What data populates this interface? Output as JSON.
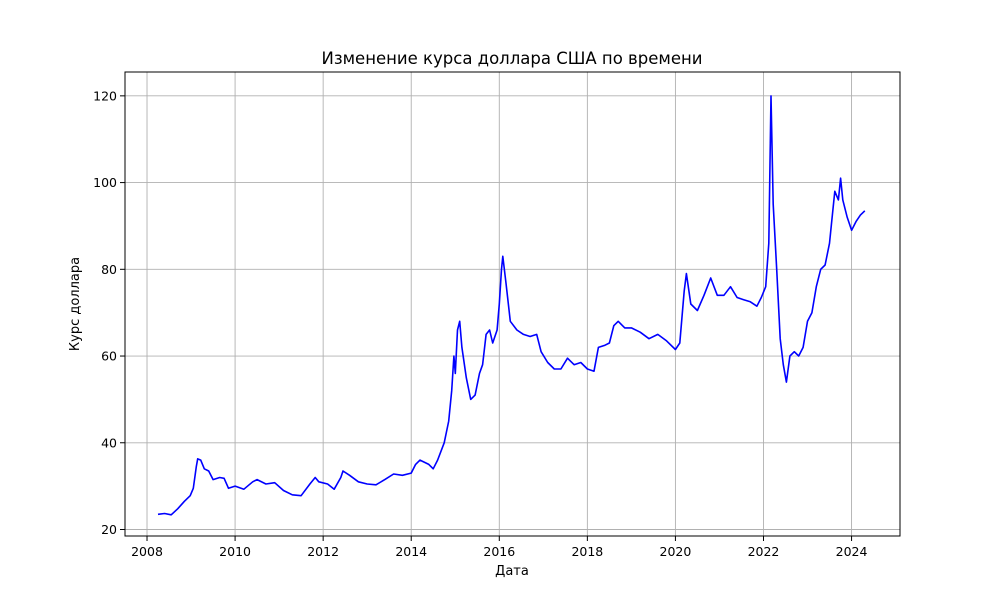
{
  "chart_data": {
    "type": "line",
    "title": "Изменение курса доллара США по времени",
    "xlabel": "Дата",
    "ylabel": "Курс доллара",
    "xlim": [
      2007.5,
      2025.1
    ],
    "ylim": [
      18.5,
      125.5
    ],
    "x_ticks": [
      2008,
      2010,
      2012,
      2014,
      2016,
      2018,
      2020,
      2022,
      2024
    ],
    "y_ticks": [
      20,
      40,
      60,
      80,
      100,
      120
    ],
    "grid": true,
    "line_color": "#0000ff",
    "series": [
      {
        "values": [
          [
            2008.25,
            23.5
          ],
          [
            2008.4,
            23.7
          ],
          [
            2008.55,
            23.4
          ],
          [
            2008.7,
            24.8
          ],
          [
            2008.85,
            26.5
          ],
          [
            2008.98,
            27.8
          ],
          [
            2009.05,
            29.5
          ],
          [
            2009.12,
            34.5
          ],
          [
            2009.15,
            36.3
          ],
          [
            2009.22,
            36.0
          ],
          [
            2009.3,
            34.0
          ],
          [
            2009.4,
            33.5
          ],
          [
            2009.5,
            31.5
          ],
          [
            2009.65,
            32.0
          ],
          [
            2009.75,
            31.8
          ],
          [
            2009.85,
            29.5
          ],
          [
            2010.0,
            30.0
          ],
          [
            2010.2,
            29.3
          ],
          [
            2010.4,
            31.0
          ],
          [
            2010.5,
            31.5
          ],
          [
            2010.7,
            30.5
          ],
          [
            2010.9,
            30.8
          ],
          [
            2011.1,
            29.0
          ],
          [
            2011.3,
            28.0
          ],
          [
            2011.5,
            27.8
          ],
          [
            2011.7,
            30.5
          ],
          [
            2011.82,
            32.0
          ],
          [
            2011.9,
            31.0
          ],
          [
            2012.1,
            30.5
          ],
          [
            2012.25,
            29.3
          ],
          [
            2012.4,
            32.0
          ],
          [
            2012.45,
            33.5
          ],
          [
            2012.6,
            32.5
          ],
          [
            2012.8,
            31.0
          ],
          [
            2013.0,
            30.5
          ],
          [
            2013.2,
            30.3
          ],
          [
            2013.4,
            31.5
          ],
          [
            2013.6,
            32.8
          ],
          [
            2013.8,
            32.5
          ],
          [
            2014.0,
            33.0
          ],
          [
            2014.1,
            35.0
          ],
          [
            2014.2,
            36.0
          ],
          [
            2014.4,
            35.0
          ],
          [
            2014.5,
            34.0
          ],
          [
            2014.6,
            36.0
          ],
          [
            2014.75,
            40.0
          ],
          [
            2014.85,
            45.0
          ],
          [
            2014.92,
            52.0
          ],
          [
            2014.97,
            60.0
          ],
          [
            2015.0,
            56.0
          ],
          [
            2015.05,
            66.0
          ],
          [
            2015.1,
            68.0
          ],
          [
            2015.15,
            62.0
          ],
          [
            2015.25,
            55.0
          ],
          [
            2015.35,
            50.0
          ],
          [
            2015.45,
            51.0
          ],
          [
            2015.55,
            56.0
          ],
          [
            2015.62,
            58.0
          ],
          [
            2015.7,
            65.0
          ],
          [
            2015.78,
            66.0
          ],
          [
            2015.85,
            63.0
          ],
          [
            2015.95,
            66.0
          ],
          [
            2016.0,
            72.0
          ],
          [
            2016.05,
            80.0
          ],
          [
            2016.08,
            83.0
          ],
          [
            2016.15,
            77.0
          ],
          [
            2016.25,
            68.0
          ],
          [
            2016.4,
            66.0
          ],
          [
            2016.55,
            65.0
          ],
          [
            2016.7,
            64.5
          ],
          [
            2016.85,
            65.0
          ],
          [
            2016.95,
            61.0
          ],
          [
            2017.1,
            58.5
          ],
          [
            2017.25,
            57.0
          ],
          [
            2017.4,
            57.0
          ],
          [
            2017.55,
            59.5
          ],
          [
            2017.7,
            58.0
          ],
          [
            2017.85,
            58.5
          ],
          [
            2018.0,
            57.0
          ],
          [
            2018.15,
            56.5
          ],
          [
            2018.25,
            62.0
          ],
          [
            2018.4,
            62.5
          ],
          [
            2018.5,
            63.0
          ],
          [
            2018.6,
            67.0
          ],
          [
            2018.7,
            68.0
          ],
          [
            2018.85,
            66.5
          ],
          [
            2019.0,
            66.5
          ],
          [
            2019.2,
            65.5
          ],
          [
            2019.4,
            64.0
          ],
          [
            2019.6,
            65.0
          ],
          [
            2019.8,
            63.5
          ],
          [
            2020.0,
            61.5
          ],
          [
            2020.1,
            63.0
          ],
          [
            2020.2,
            75.0
          ],
          [
            2020.25,
            79.0
          ],
          [
            2020.35,
            72.0
          ],
          [
            2020.5,
            70.5
          ],
          [
            2020.65,
            74.0
          ],
          [
            2020.8,
            78.0
          ],
          [
            2020.95,
            74.0
          ],
          [
            2021.1,
            74.0
          ],
          [
            2021.25,
            76.0
          ],
          [
            2021.4,
            73.5
          ],
          [
            2021.55,
            73.0
          ],
          [
            2021.7,
            72.5
          ],
          [
            2021.85,
            71.5
          ],
          [
            2021.95,
            73.5
          ],
          [
            2022.05,
            76.0
          ],
          [
            2022.12,
            86.0
          ],
          [
            2022.17,
            120.0
          ],
          [
            2022.22,
            95.0
          ],
          [
            2022.3,
            80.0
          ],
          [
            2022.38,
            64.0
          ],
          [
            2022.45,
            58.0
          ],
          [
            2022.52,
            54.0
          ],
          [
            2022.6,
            60.0
          ],
          [
            2022.7,
            61.0
          ],
          [
            2022.8,
            60.0
          ],
          [
            2022.9,
            62.0
          ],
          [
            2023.0,
            68.0
          ],
          [
            2023.1,
            70.0
          ],
          [
            2023.2,
            76.0
          ],
          [
            2023.3,
            80.0
          ],
          [
            2023.4,
            81.0
          ],
          [
            2023.5,
            86.0
          ],
          [
            2023.55,
            91.0
          ],
          [
            2023.62,
            98.0
          ],
          [
            2023.7,
            96.0
          ],
          [
            2023.75,
            101.0
          ],
          [
            2023.8,
            96.0
          ],
          [
            2023.9,
            92.0
          ],
          [
            2024.0,
            89.0
          ],
          [
            2024.1,
            91.0
          ],
          [
            2024.2,
            92.5
          ],
          [
            2024.3,
            93.5
          ]
        ]
      }
    ]
  }
}
